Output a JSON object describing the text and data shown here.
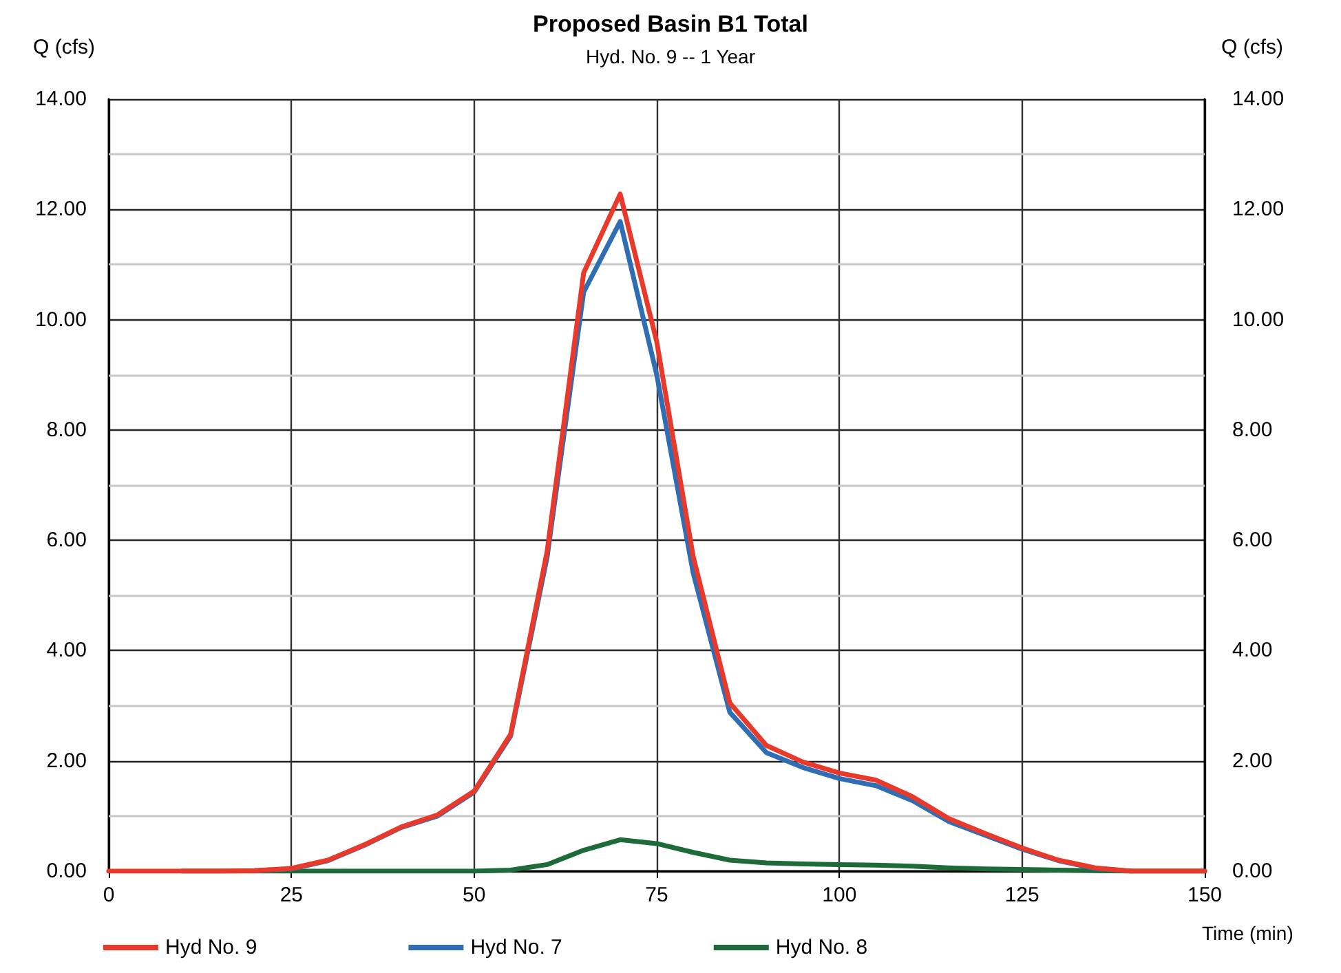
{
  "chart_data": {
    "type": "line",
    "title": "Proposed Basin B1 Total",
    "subtitle": "Hyd. No. 9 -- 1 Year",
    "xlabel": "Time (min)",
    "ylabel": "Q (cfs)",
    "y2label": "Q (cfs)",
    "x": [
      0,
      5,
      10,
      15,
      20,
      25,
      30,
      35,
      40,
      45,
      50,
      55,
      60,
      65,
      70,
      75,
      80,
      85,
      90,
      95,
      100,
      105,
      110,
      115,
      120,
      125,
      130,
      135,
      140,
      145,
      150
    ],
    "series": [
      {
        "name": "Hyd No. 9",
        "color": "#e8392a",
        "values": [
          0,
          0,
          0,
          0,
          0.01,
          0.05,
          0.2,
          0.48,
          0.8,
          1.02,
          1.45,
          2.48,
          5.8,
          10.85,
          12.28,
          9.6,
          5.7,
          3.05,
          2.28,
          1.98,
          1.78,
          1.65,
          1.35,
          0.95,
          0.68,
          0.42,
          0.2,
          0.06,
          0,
          0,
          0
        ]
      },
      {
        "name": "Hyd No. 7",
        "color": "#2f6db5",
        "values": [
          null,
          null,
          null,
          null,
          0.01,
          0.04,
          0.19,
          0.47,
          0.79,
          1.0,
          1.43,
          2.45,
          5.7,
          10.5,
          11.78,
          9.0,
          5.4,
          2.88,
          2.15,
          1.88,
          1.68,
          1.55,
          1.28,
          0.9,
          0.65,
          0.4,
          0.19,
          0.05,
          0,
          null,
          null
        ]
      },
      {
        "name": "Hyd No. 8",
        "color": "#1e6b3a",
        "values": [
          null,
          null,
          0,
          0,
          0,
          0,
          0,
          0,
          0,
          0,
          0,
          0.02,
          0.12,
          0.38,
          0.57,
          0.5,
          0.34,
          0.2,
          0.15,
          0.13,
          0.12,
          0.11,
          0.09,
          0.06,
          0.04,
          0.03,
          0.02,
          0.01,
          0,
          0,
          0
        ]
      }
    ],
    "xlim": [
      0,
      150
    ],
    "xticks": [
      0,
      25,
      50,
      75,
      100,
      125,
      150
    ],
    "ylim": [
      0,
      14
    ],
    "yticks": [
      {
        "value": 0,
        "label": "0.00"
      },
      {
        "value": 1,
        "label": null
      },
      {
        "value": 2,
        "label": "2.00"
      },
      {
        "value": 3,
        "label": null
      },
      {
        "value": 4,
        "label": "4.00"
      },
      {
        "value": 5,
        "label": null
      },
      {
        "value": 6,
        "label": "6.00"
      },
      {
        "value": 7,
        "label": null
      },
      {
        "value": 8,
        "label": "8.00"
      },
      {
        "value": 9,
        "label": null
      },
      {
        "value": 10,
        "label": "10.00"
      },
      {
        "value": 11,
        "label": null
      },
      {
        "value": 12,
        "label": "12.00"
      },
      {
        "value": 13,
        "label": null
      },
      {
        "value": 14,
        "label": "14.00"
      }
    ],
    "y2lim": [
      0,
      14
    ],
    "y2ticks": [
      {
        "value": 0,
        "label": "0.00"
      },
      {
        "value": 2,
        "label": "2.00"
      },
      {
        "value": 4,
        "label": "4.00"
      },
      {
        "value": 6,
        "label": "6.00"
      },
      {
        "value": 8,
        "label": "8.00"
      },
      {
        "value": 10,
        "label": "10.00"
      },
      {
        "value": 12,
        "label": "12.00"
      },
      {
        "value": 14,
        "label": "14.00"
      }
    ],
    "grid": true,
    "legend": "bottom left",
    "marker": "none",
    "line_style": "solid"
  }
}
